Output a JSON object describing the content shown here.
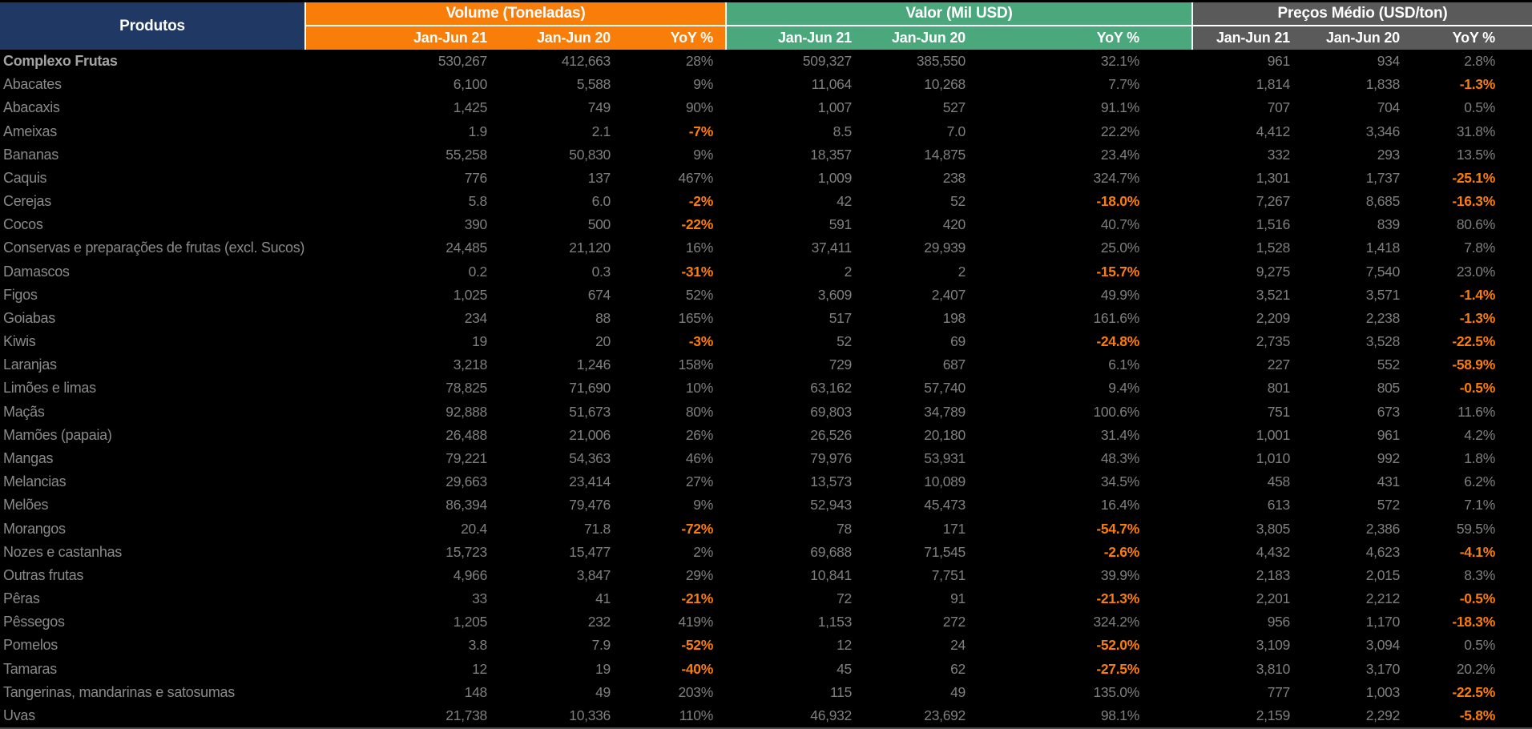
{
  "colors": {
    "header_products_bg": "#1F3864",
    "volume_header_bg": "#F97D09",
    "valor_header_bg": "#4AA87C",
    "precos_header_bg": "#5A5A5A",
    "header_text": "#FFFFFF",
    "value_text": "#7F7F7F",
    "product_text": "#8A8A8A",
    "total_row_text": "#A3A3A3",
    "negative_value": "#F97D09",
    "background": "#000000",
    "separator": "#FFFFFF",
    "bottom_border": "#4A4A4A"
  },
  "chart_data": {
    "type": "table",
    "product_column_header": "Produtos",
    "column_groups": [
      {
        "title": "Volume (Toneladas)",
        "color": "#F97D09",
        "columns": [
          "Jan-Jun 21",
          "Jan-Jun 20",
          "YoY %"
        ]
      },
      {
        "title": "Valor (Mil USD)",
        "color": "#4AA87C",
        "columns": [
          "Jan-Jun 21",
          "Jan-Jun 20",
          "YoY %"
        ]
      },
      {
        "title": "Preços Médio (USD/ton)",
        "color": "#5A5A5A",
        "columns": [
          "Jan-Jun 21",
          "Jan-Jun 20",
          "YoY %"
        ]
      }
    ],
    "rows": [
      {
        "product": "Complexo Frutas",
        "bold": true,
        "values": [
          "530,267",
          "412,663",
          "28%",
          "509,327",
          "385,550",
          "32.1%",
          "961",
          "934",
          "2.8%"
        ]
      },
      {
        "product": "Abacates",
        "bold": false,
        "values": [
          "6,100",
          "5,588",
          "9%",
          "11,064",
          "10,268",
          "7.7%",
          "1,814",
          "1,838",
          "-1.3%"
        ]
      },
      {
        "product": "Abacaxis",
        "bold": false,
        "values": [
          "1,425",
          "749",
          "90%",
          "1,007",
          "527",
          "91.1%",
          "707",
          "704",
          "0.5%"
        ]
      },
      {
        "product": "Ameixas",
        "bold": false,
        "values": [
          "1.9",
          "2.1",
          "-7%",
          "8.5",
          "7.0",
          "22.2%",
          "4,412",
          "3,346",
          "31.8%"
        ]
      },
      {
        "product": "Bananas",
        "bold": false,
        "values": [
          "55,258",
          "50,830",
          "9%",
          "18,357",
          "14,875",
          "23.4%",
          "332",
          "293",
          "13.5%"
        ]
      },
      {
        "product": "Caquis",
        "bold": false,
        "values": [
          "776",
          "137",
          "467%",
          "1,009",
          "238",
          "324.7%",
          "1,301",
          "1,737",
          "-25.1%"
        ]
      },
      {
        "product": "Cerejas",
        "bold": false,
        "values": [
          "5.8",
          "6.0",
          "-2%",
          "42",
          "52",
          "-18.0%",
          "7,267",
          "8,685",
          "-16.3%"
        ]
      },
      {
        "product": "Cocos",
        "bold": false,
        "values": [
          "390",
          "500",
          "-22%",
          "591",
          "420",
          "40.7%",
          "1,516",
          "839",
          "80.6%"
        ]
      },
      {
        "product": "Conservas e preparações de frutas (excl. Sucos)",
        "bold": false,
        "values": [
          "24,485",
          "21,120",
          "16%",
          "37,411",
          "29,939",
          "25.0%",
          "1,528",
          "1,418",
          "7.8%"
        ]
      },
      {
        "product": "Damascos",
        "bold": false,
        "values": [
          "0.2",
          "0.3",
          "-31%",
          "2",
          "2",
          "-15.7%",
          "9,275",
          "7,540",
          "23.0%"
        ]
      },
      {
        "product": "Figos",
        "bold": false,
        "values": [
          "1,025",
          "674",
          "52%",
          "3,609",
          "2,407",
          "49.9%",
          "3,521",
          "3,571",
          "-1.4%"
        ]
      },
      {
        "product": "Goiabas",
        "bold": false,
        "values": [
          "234",
          "88",
          "165%",
          "517",
          "198",
          "161.6%",
          "2,209",
          "2,238",
          "-1.3%"
        ]
      },
      {
        "product": "Kiwis",
        "bold": false,
        "values": [
          "19",
          "20",
          "-3%",
          "52",
          "69",
          "-24.8%",
          "2,735",
          "3,528",
          "-22.5%"
        ]
      },
      {
        "product": "Laranjas",
        "bold": false,
        "values": [
          "3,218",
          "1,246",
          "158%",
          "729",
          "687",
          "6.1%",
          "227",
          "552",
          "-58.9%"
        ]
      },
      {
        "product": "Limões e limas",
        "bold": false,
        "values": [
          "78,825",
          "71,690",
          "10%",
          "63,162",
          "57,740",
          "9.4%",
          "801",
          "805",
          "-0.5%"
        ]
      },
      {
        "product": "Maçãs",
        "bold": false,
        "values": [
          "92,888",
          "51,673",
          "80%",
          "69,803",
          "34,789",
          "100.6%",
          "751",
          "673",
          "11.6%"
        ]
      },
      {
        "product": "Mamões (papaia)",
        "bold": false,
        "values": [
          "26,488",
          "21,006",
          "26%",
          "26,526",
          "20,180",
          "31.4%",
          "1,001",
          "961",
          "4.2%"
        ]
      },
      {
        "product": "Mangas",
        "bold": false,
        "values": [
          "79,221",
          "54,363",
          "46%",
          "79,976",
          "53,931",
          "48.3%",
          "1,010",
          "992",
          "1.8%"
        ]
      },
      {
        "product": "Melancias",
        "bold": false,
        "values": [
          "29,663",
          "23,414",
          "27%",
          "13,573",
          "10,089",
          "34.5%",
          "458",
          "431",
          "6.2%"
        ]
      },
      {
        "product": "Melões",
        "bold": false,
        "values": [
          "86,394",
          "79,476",
          "9%",
          "52,943",
          "45,473",
          "16.4%",
          "613",
          "572",
          "7.1%"
        ]
      },
      {
        "product": "Morangos",
        "bold": false,
        "values": [
          "20.4",
          "71.8",
          "-72%",
          "78",
          "171",
          "-54.7%",
          "3,805",
          "2,386",
          "59.5%"
        ]
      },
      {
        "product": "Nozes e castanhas",
        "bold": false,
        "values": [
          "15,723",
          "15,477",
          "2%",
          "69,688",
          "71,545",
          "-2.6%",
          "4,432",
          "4,623",
          "-4.1%"
        ]
      },
      {
        "product": "Outras frutas",
        "bold": false,
        "values": [
          "4,966",
          "3,847",
          "29%",
          "10,841",
          "7,751",
          "39.9%",
          "2,183",
          "2,015",
          "8.3%"
        ]
      },
      {
        "product": "Pêras",
        "bold": false,
        "values": [
          "33",
          "41",
          "-21%",
          "72",
          "91",
          "-21.3%",
          "2,201",
          "2,212",
          "-0.5%"
        ]
      },
      {
        "product": "Pêssegos",
        "bold": false,
        "values": [
          "1,205",
          "232",
          "419%",
          "1,153",
          "272",
          "324.2%",
          "956",
          "1,170",
          "-18.3%"
        ]
      },
      {
        "product": "Pomelos",
        "bold": false,
        "values": [
          "3.8",
          "7.9",
          "-52%",
          "12",
          "24",
          "-52.0%",
          "3,109",
          "3,094",
          "0.5%"
        ]
      },
      {
        "product": "Tamaras",
        "bold": false,
        "values": [
          "12",
          "19",
          "-40%",
          "45",
          "62",
          "-27.5%",
          "3,810",
          "3,170",
          "20.2%"
        ]
      },
      {
        "product": "Tangerinas, mandarinas e satosumas",
        "bold": false,
        "values": [
          "148",
          "49",
          "203%",
          "115",
          "49",
          "135.0%",
          "777",
          "1,003",
          "-22.5%"
        ]
      },
      {
        "product": "Uvas",
        "bold": false,
        "values": [
          "21,738",
          "10,336",
          "110%",
          "46,932",
          "23,692",
          "98.1%",
          "2,159",
          "2,292",
          "-5.8%"
        ]
      }
    ]
  }
}
